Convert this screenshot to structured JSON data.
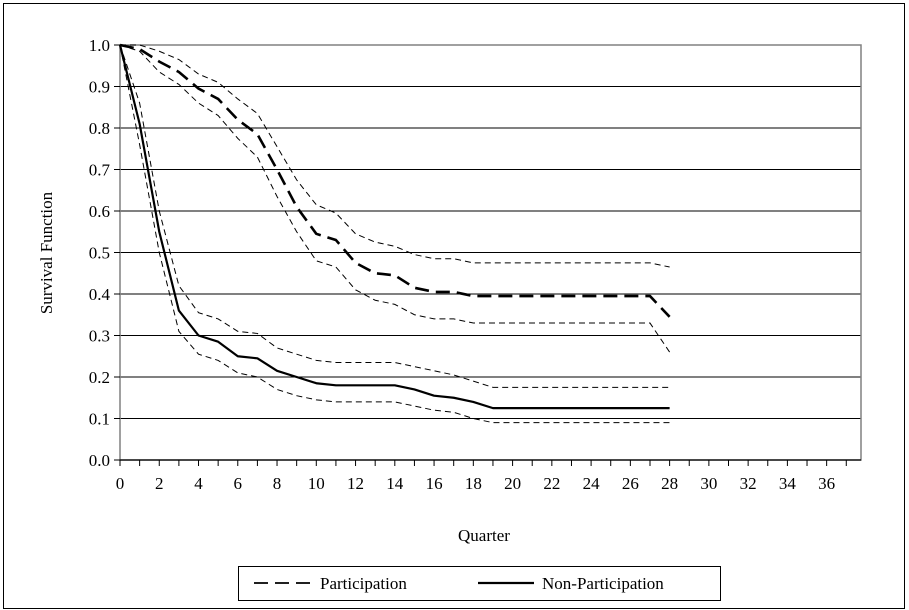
{
  "chart_data": {
    "type": "line",
    "title": "",
    "xlabel": "Quarter",
    "ylabel": "Survival Function",
    "xlim": [
      0,
      37.75
    ],
    "ylim": [
      0,
      1.0
    ],
    "x_ticks": [
      "0",
      "2",
      "4",
      "6",
      "8",
      "10",
      "12",
      "14",
      "16",
      "18",
      "20",
      "22",
      "24",
      "26",
      "28",
      "30",
      "32",
      "34",
      "36"
    ],
    "y_ticks": [
      "0.0",
      "0.1",
      "0.2",
      "0.3",
      "0.4",
      "0.5",
      "0.6",
      "0.7",
      "0.8",
      "0.9",
      "1.0"
    ],
    "grid": "horizontal",
    "legend_position": "bottom",
    "x": [
      0,
      1,
      2,
      3,
      4,
      5,
      6,
      7,
      8,
      9,
      10,
      11,
      12,
      13,
      14,
      15,
      16,
      17,
      18,
      19,
      20,
      21,
      22,
      23,
      24,
      25,
      26,
      27,
      28
    ],
    "series": [
      {
        "name": "Participation",
        "style": "dashed",
        "values": [
          1.0,
          0.99,
          0.96,
          0.935,
          0.895,
          0.87,
          0.82,
          0.785,
          0.7,
          0.61,
          0.545,
          0.53,
          0.475,
          0.45,
          0.445,
          0.415,
          0.405,
          0.405,
          0.395,
          0.395,
          0.395,
          0.395,
          0.395,
          0.395,
          0.395,
          0.395,
          0.395,
          0.395,
          0.345
        ],
        "ci_upper": [
          1.0,
          1.0,
          0.985,
          0.965,
          0.93,
          0.91,
          0.87,
          0.835,
          0.755,
          0.675,
          0.615,
          0.595,
          0.545,
          0.525,
          0.515,
          0.495,
          0.485,
          0.485,
          0.475,
          0.475,
          0.475,
          0.475,
          0.475,
          0.475,
          0.475,
          0.475,
          0.475,
          0.475,
          0.465
        ],
        "ci_lower": [
          1.0,
          0.985,
          0.935,
          0.905,
          0.86,
          0.83,
          0.775,
          0.73,
          0.635,
          0.55,
          0.48,
          0.465,
          0.41,
          0.385,
          0.375,
          0.35,
          0.34,
          0.34,
          0.33,
          0.33,
          0.33,
          0.33,
          0.33,
          0.33,
          0.33,
          0.33,
          0.33,
          0.33,
          0.26
        ]
      },
      {
        "name": "Non-Participation",
        "style": "solid",
        "values": [
          1.0,
          0.81,
          0.55,
          0.36,
          0.3,
          0.285,
          0.25,
          0.245,
          0.215,
          0.2,
          0.185,
          0.18,
          0.18,
          0.18,
          0.18,
          0.17,
          0.155,
          0.15,
          0.14,
          0.125,
          0.125,
          0.125,
          0.125,
          0.125,
          0.125,
          0.125,
          0.125,
          0.125,
          0.125
        ],
        "ci_upper": [
          1.0,
          0.86,
          0.6,
          0.42,
          0.355,
          0.34,
          0.31,
          0.305,
          0.27,
          0.255,
          0.24,
          0.235,
          0.235,
          0.235,
          0.235,
          0.225,
          0.215,
          0.205,
          0.19,
          0.175,
          0.175,
          0.175,
          0.175,
          0.175,
          0.175,
          0.175,
          0.175,
          0.175,
          0.175
        ],
        "ci_lower": [
          1.0,
          0.76,
          0.5,
          0.31,
          0.255,
          0.24,
          0.21,
          0.2,
          0.17,
          0.155,
          0.145,
          0.14,
          0.14,
          0.14,
          0.14,
          0.13,
          0.12,
          0.115,
          0.1,
          0.09,
          0.09,
          0.09,
          0.09,
          0.09,
          0.09,
          0.09,
          0.09,
          0.09,
          0.09
        ]
      }
    ]
  },
  "colors": {
    "line": "#000000",
    "grid": "#000000",
    "plot_border": "#808080",
    "background": "#ffffff"
  }
}
